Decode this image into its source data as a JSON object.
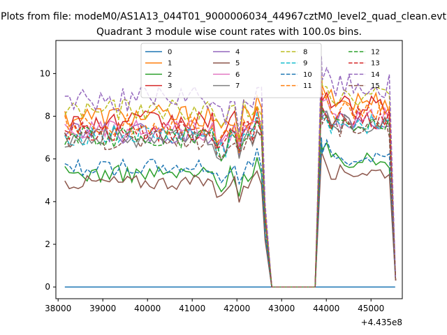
{
  "figure": {
    "suptitle": "Plots from file: modeM0/AS1A13_044T01_9000006034_44967cztM0_level2_quad_clean.evt",
    "title": "Quadrant 3 module wise count rates with 100.0s bins."
  },
  "chart_data": {
    "type": "line",
    "title": "Quadrant 3 module wise count rates with 100.0s bins.",
    "xlabel": "",
    "ylabel": "",
    "x_offset_label": "+4.435e8",
    "xlim": [
      37950,
      45700
    ],
    "ylim": [
      -0.55,
      11.55
    ],
    "xticks": [
      38000,
      39000,
      40000,
      41000,
      42000,
      43000,
      44000,
      45000
    ],
    "yticks": [
      0,
      2,
      4,
      6,
      8,
      10
    ],
    "grid": false,
    "legend": {
      "placement": "upper-center",
      "ncol": 4
    },
    "segments": {
      "on1": [
        38150,
        42620
      ],
      "ramp_down": [
        42630,
        42780
      ],
      "zero": [
        42780,
        43750
      ],
      "ramp_up": [
        43780,
        43910
      ],
      "on2": [
        43910,
        45450
      ],
      "final_drop": [
        45550,
        0.3
      ]
    },
    "series": [
      {
        "name": "0",
        "color": "#1f77b4",
        "dash": "solid",
        "level1": 0.0,
        "level2": 0.0,
        "noise": 0.0
      },
      {
        "name": "1",
        "color": "#ff7f0e",
        "dash": "solid",
        "level1": 8.0,
        "level2": 8.7,
        "noise": 0.55
      },
      {
        "name": "2",
        "color": "#2ca02c",
        "dash": "solid",
        "level1": 5.3,
        "level2": 5.9,
        "noise": 0.4
      },
      {
        "name": "3",
        "color": "#d62728",
        "dash": "solid",
        "level1": 7.7,
        "level2": 8.4,
        "noise": 0.55
      },
      {
        "name": "4",
        "color": "#9467bd",
        "dash": "solid",
        "level1": 7.2,
        "level2": 7.8,
        "noise": 0.5
      },
      {
        "name": "5",
        "color": "#8c564b",
        "dash": "solid",
        "level1": 4.9,
        "level2": 5.4,
        "noise": 0.35
      },
      {
        "name": "6",
        "color": "#e377c2",
        "dash": "solid",
        "level1": 7.3,
        "level2": 7.9,
        "noise": 0.5
      },
      {
        "name": "7",
        "color": "#7f7f7f",
        "dash": "solid",
        "level1": 7.0,
        "level2": 7.6,
        "noise": 0.5
      },
      {
        "name": "8",
        "color": "#bcbd22",
        "dash": "dashed",
        "level1": 8.3,
        "level2": 9.0,
        "noise": 0.5
      },
      {
        "name": "9",
        "color": "#17becf",
        "dash": "dashed",
        "level1": 7.1,
        "level2": 7.7,
        "noise": 0.5
      },
      {
        "name": "10",
        "color": "#1f77b4",
        "dash": "dashed",
        "level1": 5.6,
        "level2": 6.1,
        "noise": 0.4
      },
      {
        "name": "11",
        "color": "#ff7f0e",
        "dash": "dashed",
        "level1": 7.6,
        "level2": 8.2,
        "noise": 0.5
      },
      {
        "name": "12",
        "color": "#2ca02c",
        "dash": "dashed",
        "level1": 7.0,
        "level2": 7.6,
        "noise": 0.5
      },
      {
        "name": "13",
        "color": "#d62728",
        "dash": "dashed",
        "level1": 7.3,
        "level2": 7.9,
        "noise": 0.5
      },
      {
        "name": "14",
        "color": "#9467bd",
        "dash": "dashed",
        "level1": 8.8,
        "level2": 9.4,
        "noise": 0.6
      },
      {
        "name": "15",
        "color": "#8c564b",
        "dash": "dashed",
        "level1": 6.9,
        "level2": 7.5,
        "noise": 0.5
      }
    ]
  }
}
